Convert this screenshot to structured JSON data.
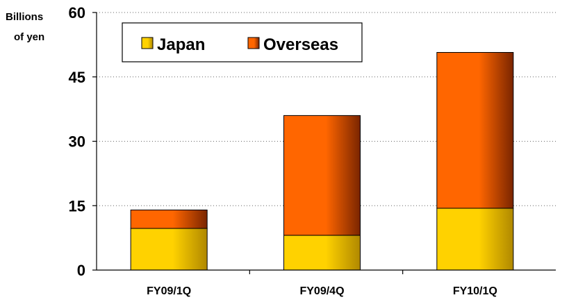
{
  "chart_data": {
    "type": "bar",
    "stacked": true,
    "categories": [
      "FY09/1Q",
      "FY09/4Q",
      "FY10/1Q"
    ],
    "series": [
      {
        "name": "Japan",
        "values": [
          9.7,
          8.1,
          14.4
        ]
      },
      {
        "name": "Overseas",
        "values": [
          4.3,
          27.9,
          36.3
        ]
      }
    ],
    "title": "",
    "xlabel": "",
    "ylabel": [
      "Billions",
      "of yen"
    ],
    "ylim": [
      0,
      60
    ],
    "yticks": [
      0,
      15,
      30,
      45,
      60
    ],
    "grid": "horizontal-dotted",
    "legend_position": "top-left",
    "colors": {
      "Japan": {
        "light": "#ffd200",
        "dark": "#b08800"
      },
      "Overseas": {
        "light": "#ff6600",
        "dark": "#7a2500"
      }
    }
  }
}
